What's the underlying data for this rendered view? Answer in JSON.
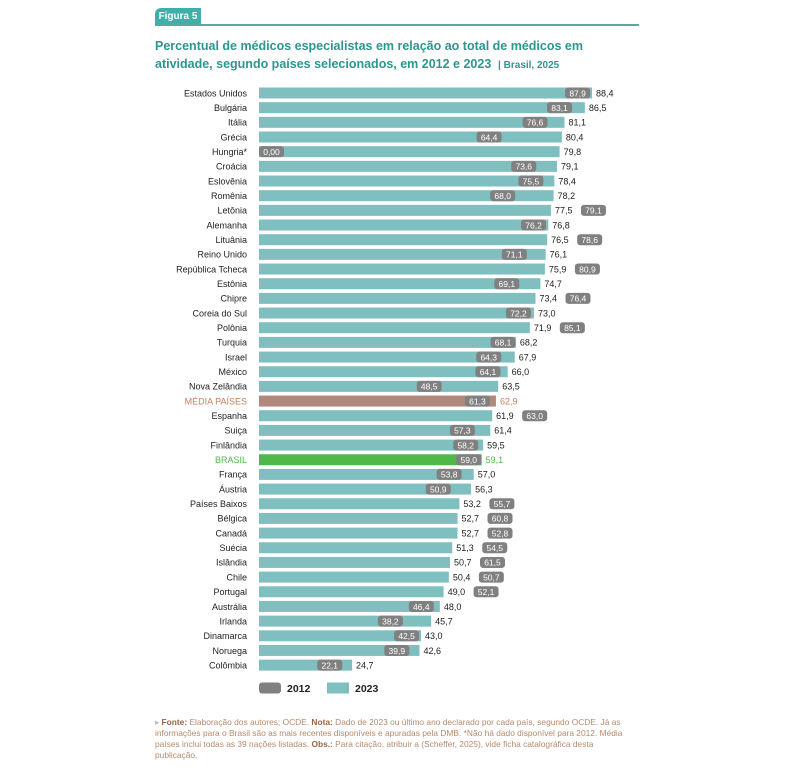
{
  "figure_label": "Figura 5",
  "title": "Percentual de médicos especialistas em relação ao total de médicos em atividade, segundo países selecionados, em 2012 e 2023",
  "title_suffix": "Brasil, 2025",
  "colors": {
    "bar_2023": "#7fbfbf",
    "badge_2012": "#808080",
    "media": "#b0897c",
    "brasil": "#4fb848",
    "media_text": "#c9805a",
    "brasil_text": "#4fb848"
  },
  "chart_data": {
    "type": "bar",
    "orientation": "horizontal",
    "legend_position": "bottom",
    "grid": false,
    "xlim": [
      0,
      90
    ],
    "categories": [
      "Estados Unidos",
      "Bulgária",
      "Itália",
      "Grécia",
      "Hungria*",
      "Croácia",
      "Eslovênia",
      "Romênia",
      "Letônia",
      "Alemanha",
      "Lituânia",
      "Reino Unido",
      "República Tcheca",
      "Estônia",
      "Chipre",
      "Coreia do Sul",
      "Polônia",
      "Turquia",
      "Israel",
      "México",
      "Nova Zelândia",
      "MÉDIA PAÍSES",
      "Espanha",
      "Suiça",
      "Finlândia",
      "BRASIL",
      "França",
      "Áustria",
      "Países Baixos",
      "Bélgica",
      "Canadá",
      "Suécia",
      "Islândia",
      "Chile",
      "Portugal",
      "Austrália",
      "Irlanda",
      "Dinamarca",
      "Noruega",
      "Colômbia"
    ],
    "series": [
      {
        "name": "2012",
        "values": [
          "87,9",
          "83,1",
          "76,6",
          "64,4",
          "0,00",
          "73,6",
          "75,5",
          "68,0",
          "79,1",
          "76,2",
          "78,6",
          "71,1",
          "80,9",
          "69,1",
          "76,4",
          "72,2",
          "85,1",
          "68,1",
          "64,3",
          "64,1",
          "48,5",
          "61,3",
          "63,0",
          "57,3",
          "58,2",
          "59,0",
          "53,8",
          "50,9",
          "55,7",
          "60,8",
          "52,8",
          "54,5",
          "61,5",
          "50,7",
          "52,1",
          "46,4",
          "38,2",
          "42,5",
          "39,9",
          "22,1"
        ]
      },
      {
        "name": "2023",
        "values": [
          "88,4",
          "86,5",
          "81,1",
          "80,4",
          "79,8",
          "79,1",
          "78,4",
          "78,2",
          "77,5",
          "76,8",
          "76,5",
          "76,1",
          "75,9",
          "74,7",
          "73,4",
          "73,0",
          "71,9",
          "68,2",
          "67,9",
          "66,0",
          "63,5",
          "62,9",
          "61,9",
          "61,4",
          "59,5",
          "59,1",
          "57,0",
          "56,3",
          "53,2",
          "52,7",
          "52,7",
          "51,3",
          "50,7",
          "50,4",
          "49,0",
          "48,0",
          "45,7",
          "43,0",
          "42,6",
          "24,7"
        ]
      }
    ],
    "highlight": {
      "MÉDIA PAÍSES": "media",
      "BRASIL": "brasil"
    }
  },
  "footnote": {
    "fonte_label": "Fonte:",
    "fonte_text": "Elaboração dos autores; OCDE.",
    "nota_label": "Nota:",
    "nota_text": "Dado de 2023 ou último ano declarado por cada país, segundo OCDE. Já as informações para o Brasil são as mais recentes disponíveis e apuradas pela DMB. *Não há dado disponível para 2012. Média países inclui todas as 39 nações listadas.",
    "obs_label": "Obs.:",
    "obs_text": "Para citação, atribuir a (Scheffer, 2025), vide ficha catalográfica desta publicação."
  }
}
